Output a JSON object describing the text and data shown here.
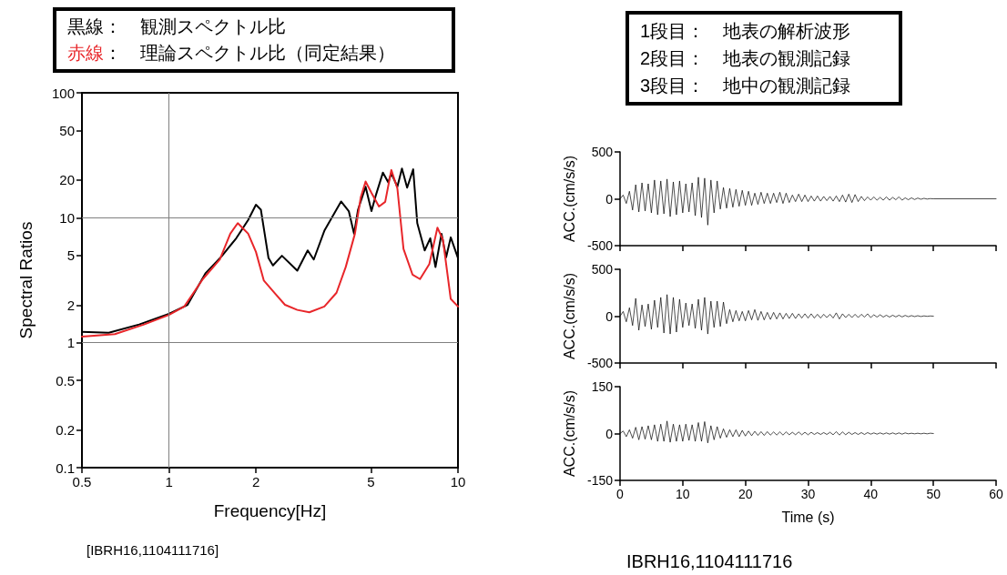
{
  "chart_data": [
    {
      "type": "line",
      "xlabel": "Frequency[Hz]",
      "ylabel": "Spectral Ratios",
      "log": "xy",
      "xlim": [
        0.5,
        10
      ],
      "xticks": [
        0.5,
        1,
        2,
        5,
        10
      ],
      "ylim": [
        0.1,
        100
      ],
      "yticks": [
        0.1,
        0.2,
        0.5,
        1,
        2,
        5,
        10,
        20,
        50,
        100
      ],
      "annotations": [
        "黒線：　観測スペクトル比",
        "赤線：　理論スペクトル比（同定結果）",
        "[IBRH16,1104111716]"
      ],
      "ref_lines": [
        {
          "axis": "x",
          "value": 1,
          "color": "#808080"
        },
        {
          "axis": "y",
          "value": 1,
          "color": "#808080"
        },
        {
          "axis": "y",
          "value": 10,
          "color": "#808080"
        }
      ],
      "series": [
        {
          "color": "#000000",
          "x": [
            0.5,
            0.619,
            0.789,
            1.0,
            1.16,
            1.34,
            1.52,
            1.71,
            1.88,
            2.0,
            2.08,
            2.21,
            2.29,
            2.46,
            2.78,
            3.02,
            3.17,
            3.45,
            3.94,
            4.19,
            4.37,
            4.51,
            4.79,
            5.02,
            5.21,
            5.5,
            5.74,
            5.88,
            6.17,
            6.4,
            6.67,
            7.0,
            7.23,
            7.67,
            8.02,
            8.36,
            8.77,
            9.1,
            9.44,
            9.75,
            10
          ],
          "values": [
            1.22,
            1.2,
            1.4,
            1.7,
            2.01,
            3.61,
            4.9,
            6.86,
            9.6,
            12.7,
            11.6,
            4.77,
            4.15,
            4.96,
            3.77,
            5.48,
            4.63,
            7.88,
            13.5,
            11.3,
            7.45,
            11.6,
            17.7,
            11.3,
            15.4,
            23.0,
            19.2,
            22.7,
            17.7,
            24.8,
            17.4,
            24.4,
            9.05,
            5.48,
            6.85,
            4.03,
            7.45,
            4.83,
            6.97,
            5.63,
            4.76
          ]
        },
        {
          "color": "#e8262a",
          "x": [
            0.5,
            0.65,
            0.82,
            1.0,
            1.13,
            1.31,
            1.5,
            1.63,
            1.73,
            1.88,
            2.0,
            2.13,
            2.34,
            2.52,
            2.78,
            3.06,
            3.45,
            3.8,
            4.09,
            4.4,
            4.61,
            4.79,
            5.02,
            5.33,
            5.6,
            5.88,
            6.17,
            6.48,
            6.96,
            7.39,
            7.96,
            8.49,
            8.87,
            9.44,
            10
          ],
          "values": [
            1.12,
            1.17,
            1.4,
            1.67,
            1.95,
            3.23,
            4.64,
            7.45,
            9.06,
            7.45,
            5.33,
            3.14,
            2.44,
            2.01,
            1.83,
            1.75,
            1.95,
            2.51,
            4.04,
            7.45,
            14.6,
            19.5,
            15.8,
            12.3,
            13.4,
            24.1,
            17.2,
            5.63,
            3.51,
            3.23,
            4.26,
            8.33,
            6.67,
            2.24,
            1.95
          ]
        }
      ]
    },
    {
      "type": "line",
      "ylabel": "ACC.(cm/s/s)",
      "xlim": [
        0,
        60
      ],
      "xticks": [
        0,
        10,
        20,
        30,
        40,
        50,
        60
      ],
      "ylim": [
        -500,
        500
      ],
      "yticks": [
        -500,
        0,
        500
      ],
      "tick_labels": "y",
      "annotations": [
        "1段目：　地表の解析波形",
        "2段目：　地表の観測記録",
        "3段目：　地中の観測記録"
      ],
      "x": [
        0,
        0.5,
        1,
        1.5,
        2,
        2.5,
        3,
        3.5,
        4,
        4.5,
        5,
        5.5,
        6,
        6.5,
        7,
        7.5,
        8,
        8.5,
        9,
        9.5,
        10,
        10.5,
        11,
        11.5,
        12,
        12.5,
        13,
        13.5,
        14,
        14.5,
        15,
        15.5,
        16,
        16.5,
        17,
        17.5,
        18,
        18.5,
        19,
        19.5,
        20,
        20.5,
        21,
        21.5,
        22,
        22.5,
        23,
        23.5,
        24,
        24.5,
        25,
        25.5,
        26,
        26.5,
        27,
        27.5,
        28,
        28.5,
        29,
        29.5,
        30,
        30.5,
        31,
        31.5,
        32,
        32.5,
        33,
        33.5,
        34,
        34.5,
        35,
        35.5,
        36,
        36.5,
        37,
        37.5,
        38,
        38.5,
        39,
        39.5,
        40,
        40.5,
        41,
        41.5,
        42,
        42.5,
        43,
        43.5,
        44,
        44.5,
        45,
        45.5,
        46,
        46.5,
        47,
        47.5,
        48,
        48.5,
        49,
        49.5,
        50,
        60
      ],
      "series": [
        {
          "color": "#000000",
          "values": [
            0,
            40,
            -50,
            80,
            -120,
            150,
            -140,
            170,
            -130,
            160,
            -150,
            200,
            -170,
            190,
            -160,
            210,
            -190,
            180,
            -170,
            190,
            -150,
            160,
            -140,
            170,
            -180,
            230,
            -200,
            220,
            -280,
            200,
            -150,
            190,
            -110,
            120,
            -100,
            110,
            -90,
            100,
            -80,
            90,
            -70,
            80,
            -70,
            60,
            -60,
            70,
            -50,
            60,
            -50,
            60,
            -40,
            70,
            -50,
            60,
            -40,
            40,
            -30,
            50,
            -30,
            40,
            -30,
            30,
            -25,
            30,
            -25,
            25,
            -20,
            25,
            -25,
            30,
            -30,
            40,
            -35,
            50,
            -40,
            45,
            -30,
            25,
            -20,
            20,
            -15,
            20,
            -15,
            15,
            -15,
            20,
            -15,
            15,
            -10,
            20,
            -15,
            10,
            -10,
            10,
            -8,
            8,
            -5,
            5,
            -3,
            2,
            0,
            0
          ]
        }
      ]
    },
    {
      "type": "line",
      "ylabel": "ACC.(cm/s/s)",
      "xlim": [
        0,
        60
      ],
      "xticks": [
        0,
        10,
        20,
        30,
        40,
        50,
        60
      ],
      "ylim": [
        -500,
        500
      ],
      "yticks": [
        -500,
        0,
        500
      ],
      "tick_labels": "y",
      "x": [
        0,
        0.5,
        1,
        1.5,
        2,
        2.5,
        3,
        3.5,
        4,
        4.5,
        5,
        5.5,
        6,
        6.5,
        7,
        7.5,
        8,
        8.5,
        9,
        9.5,
        10,
        10.5,
        11,
        11.5,
        12,
        12.5,
        13,
        13.5,
        14,
        14.5,
        15,
        15.5,
        16,
        16.5,
        17,
        17.5,
        18,
        18.5,
        19,
        19.5,
        20,
        20.5,
        21,
        21.5,
        22,
        22.5,
        23,
        23.5,
        24,
        24.5,
        25,
        25.5,
        26,
        26.5,
        27,
        27.5,
        28,
        28.5,
        29,
        29.5,
        30,
        30.5,
        31,
        31.5,
        32,
        32.5,
        33,
        33.5,
        34,
        34.5,
        35,
        35.5,
        36,
        36.5,
        37,
        37.5,
        38,
        38.5,
        39,
        39.5,
        40,
        40.5,
        41,
        41.5,
        42,
        42.5,
        43,
        43.5,
        44,
        44.5,
        45,
        45.5,
        46,
        46.5,
        47,
        47.5,
        48,
        48.5,
        49,
        49.5,
        50
      ],
      "series": [
        {
          "color": "#000000",
          "values": [
            0,
            50,
            -60,
            90,
            -100,
            190,
            -150,
            120,
            -110,
            130,
            -140,
            170,
            -120,
            200,
            -180,
            230,
            -190,
            200,
            -170,
            180,
            -120,
            140,
            -100,
            130,
            -130,
            180,
            -150,
            200,
            -190,
            160,
            -120,
            160,
            -110,
            150,
            -80,
            70,
            -60,
            60,
            -50,
            50,
            -50,
            60,
            -40,
            70,
            -45,
            50,
            -40,
            40,
            -35,
            40,
            -30,
            35,
            -30,
            30,
            -25,
            30,
            -25,
            25,
            -20,
            25,
            -20,
            25,
            -20,
            20,
            -20,
            20,
            -15,
            20,
            -20,
            35,
            -30,
            25,
            -15,
            20,
            -15,
            20,
            -15,
            20,
            -10,
            25,
            -15,
            15,
            -10,
            15,
            -10,
            10,
            -10,
            10,
            -8,
            10,
            -8,
            8,
            -6,
            6,
            -5,
            5,
            -4,
            3,
            -2,
            2,
            0
          ]
        }
      ]
    },
    {
      "type": "line",
      "ylabel": "ACC.(cm/s/s)",
      "xlabel": "Time (s)",
      "xlim": [
        0,
        60
      ],
      "xticks": [
        0,
        10,
        20,
        30,
        40,
        50,
        60
      ],
      "ylim": [
        -150,
        150
      ],
      "yticks": [
        -150,
        0,
        150
      ],
      "annotations": [
        "IBRH16,1104111716"
      ],
      "x": [
        0,
        0.5,
        1,
        1.5,
        2,
        2.5,
        3,
        3.5,
        4,
        4.5,
        5,
        5.5,
        6,
        6.5,
        7,
        7.5,
        8,
        8.5,
        9,
        9.5,
        10,
        10.5,
        11,
        11.5,
        12,
        12.5,
        13,
        13.5,
        14,
        14.5,
        15,
        15.5,
        16,
        16.5,
        17,
        17.5,
        18,
        18.5,
        19,
        19.5,
        20,
        20.5,
        21,
        21.5,
        22,
        22.5,
        23,
        23.5,
        24,
        24.5,
        25,
        25.5,
        26,
        26.5,
        27,
        27.5,
        28,
        28.5,
        29,
        29.5,
        30,
        30.5,
        31,
        31.5,
        32,
        32.5,
        33,
        33.5,
        34,
        34.5,
        35,
        35.5,
        36,
        36.5,
        37,
        37.5,
        38,
        38.5,
        39,
        39.5,
        40,
        40.5,
        41,
        41.5,
        42,
        42.5,
        43,
        43.5,
        44,
        44.5,
        45,
        45.5,
        46,
        46.5,
        47,
        47.5,
        48,
        48.5,
        49,
        49.5,
        50
      ],
      "series": [
        {
          "color": "#000000",
          "values": [
            0,
            8,
            -10,
            12,
            -15,
            20,
            -20,
            22,
            -18,
            25,
            -20,
            28,
            -25,
            30,
            -25,
            40,
            -28,
            30,
            -25,
            28,
            -25,
            30,
            -22,
            28,
            -25,
            35,
            -25,
            38,
            -30,
            25,
            -20,
            22,
            -15,
            15,
            -12,
            12,
            -10,
            12,
            -10,
            10,
            -8,
            8,
            -7,
            7,
            -6,
            6,
            -6,
            6,
            -5,
            5,
            -5,
            5,
            -5,
            5,
            -4,
            4,
            -4,
            5,
            -4,
            4,
            -4,
            4,
            -3,
            3,
            -3,
            3,
            -3,
            4,
            -4,
            6,
            -5,
            5,
            -4,
            4,
            -3,
            3,
            -3,
            3,
            -3,
            3,
            -2,
            2,
            -2,
            2,
            -2,
            2,
            -2,
            2,
            -2,
            2,
            -2,
            2,
            -1,
            1,
            -1,
            1,
            -1,
            1,
            -1,
            1,
            0
          ]
        }
      ]
    }
  ]
}
